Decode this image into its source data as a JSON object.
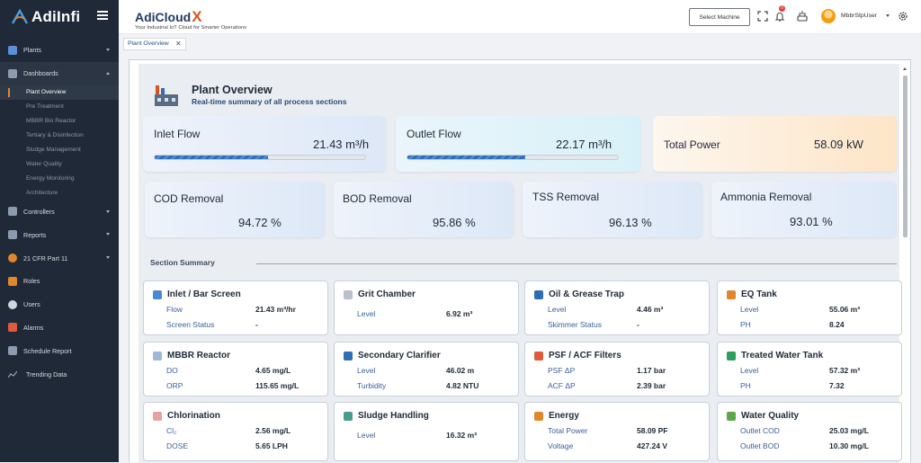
{
  "app": {
    "logo_text": "AdiInfi"
  },
  "sidebar": {
    "items": [
      {
        "label": "Plants",
        "icon": "building-icon",
        "color": "#5b8fd6"
      },
      {
        "label": "Dashboards",
        "icon": "dashboard-icon",
        "color": "#8d9bb0"
      },
      {
        "label": "Controllers",
        "icon": "controller-icon",
        "color": "#8d9bb0"
      },
      {
        "label": "Reports",
        "icon": "report-icon",
        "color": "#8d9bb0"
      },
      {
        "label": "21 CFR Part 11",
        "icon": "ribbon-icon",
        "color": "#e0872c"
      },
      {
        "label": "Roles",
        "icon": "roles-icon",
        "color": "#e0872c"
      },
      {
        "label": "Users",
        "icon": "user-icon",
        "color": "#cfd6df"
      },
      {
        "label": "Alarms",
        "icon": "alarm-icon",
        "color": "#e05a3c"
      },
      {
        "label": "Schedule Report",
        "icon": "schedule-icon",
        "color": "#8d9bb0"
      },
      {
        "label": "Trending Data",
        "icon": "trend-icon",
        "color": "#8d9bb0"
      }
    ],
    "dashboard_subitems": [
      "Plant Overview",
      "Pre Treatment",
      "MBBR Bio Reactor",
      "Tertiary & Disinfection",
      "Sludge Management",
      "Water Quality",
      "Energy Monitoring",
      "Architecture"
    ]
  },
  "topbar": {
    "brand_title": "AdiCloud",
    "brand_x": "X",
    "brand_sub": "Your Industrial IoT Cloud for Smarter Operations",
    "select_machine": "Select Machine",
    "notification_count": "0",
    "user_name": "MbbrStpUser"
  },
  "tabs": [
    {
      "label": "Plant Overview"
    }
  ],
  "overview": {
    "title": "Plant Overview",
    "subtitle": "Real-time summary of all process sections"
  },
  "kpis": {
    "inlet_flow": {
      "label": "Inlet Flow",
      "value": "21.43 m³/h",
      "progress": 0.54
    },
    "outlet_flow": {
      "label": "Outlet Flow",
      "value": "22.17 m³/h",
      "progress": 0.56
    },
    "total_power": {
      "label": "Total Power",
      "value": "58.09 kW"
    },
    "cod": {
      "label": "COD Removal",
      "value": "94.72 %"
    },
    "bod": {
      "label": "BOD Removal",
      "value": "95.86 %"
    },
    "tss": {
      "label": "TSS Removal",
      "value": "96.13 %"
    },
    "ammonia": {
      "label": "Ammonia Removal",
      "value": "93.01 %"
    }
  },
  "section_summary": {
    "title": "Section Summary",
    "cards": [
      {
        "title": "Inlet / Bar Screen",
        "icon": "screen-icon",
        "color": "#4a8ad3",
        "rows": [
          {
            "label": "Flow",
            "value": "21.43 m³/hr"
          },
          {
            "label": "Screen Status",
            "value": "-"
          }
        ]
      },
      {
        "title": "Grit Chamber",
        "icon": "grit-icon",
        "color": "#b8c0c9",
        "rows": [
          {
            "label": "Level",
            "value": "6.92 m³"
          }
        ]
      },
      {
        "title": "Oil & Grease Trap",
        "icon": "oil-icon",
        "color": "#2f6db5",
        "rows": [
          {
            "label": "Level",
            "value": "4.46 m³"
          },
          {
            "label": "Skimmer Status",
            "value": "-"
          }
        ]
      },
      {
        "title": "EQ Tank",
        "icon": "tank-icon",
        "color": "#e0872c",
        "rows": [
          {
            "label": "Level",
            "value": "55.06 m³"
          },
          {
            "label": "PH",
            "value": "8.24"
          }
        ]
      },
      {
        "title": "MBBR Reactor",
        "icon": "reactor-icon",
        "color": "#9fb8d6",
        "rows": [
          {
            "label": "DO",
            "value": "4.65 mg/L"
          },
          {
            "label": "ORP",
            "value": "115.65 mg/L"
          }
        ]
      },
      {
        "title": "Secondary Clarifier",
        "icon": "clarifier-icon",
        "color": "#2f6db5",
        "rows": [
          {
            "label": "Level",
            "value": "46.02 m"
          },
          {
            "label": "Turbidity",
            "value": "4.82 NTU"
          }
        ]
      },
      {
        "title": "PSF / ACF Filters",
        "icon": "filter-icon",
        "color": "#e05a3c",
        "rows": [
          {
            "label": "PSF ΔP",
            "value": "1.17 bar"
          },
          {
            "label": "ACF ΔP",
            "value": "2.39 bar"
          }
        ]
      },
      {
        "title": "Treated Water Tank",
        "icon": "check-icon",
        "color": "#2e9e5b",
        "rows": [
          {
            "label": "Level",
            "value": "57.32 m³"
          },
          {
            "label": "PH",
            "value": "7.32"
          }
        ]
      },
      {
        "title": "Chlorination",
        "icon": "chlorine-icon",
        "color": "#e8a0a0",
        "rows": [
          {
            "label": "Cl₂",
            "value": "2.56 mg/L"
          },
          {
            "label": "DOSE",
            "value": "5.65 LPH"
          }
        ]
      },
      {
        "title": "Sludge Handling",
        "icon": "sludge-icon",
        "color": "#4a9b8e",
        "rows": [
          {
            "label": "Level",
            "value": "16.32 m³"
          }
        ]
      },
      {
        "title": "Energy",
        "icon": "lightning-icon",
        "color": "#e0872c",
        "rows": [
          {
            "label": "Total Power",
            "value": "58.09 PF"
          },
          {
            "label": "Voltage",
            "value": "427.24 V"
          }
        ]
      },
      {
        "title": "Water Quality",
        "icon": "leaf-icon",
        "color": "#5aa84a",
        "rows": [
          {
            "label": "Outlet COD",
            "value": "25.03 mg/L"
          },
          {
            "label": "Outlet BOD",
            "value": "10.30 mg/L"
          }
        ]
      }
    ]
  }
}
